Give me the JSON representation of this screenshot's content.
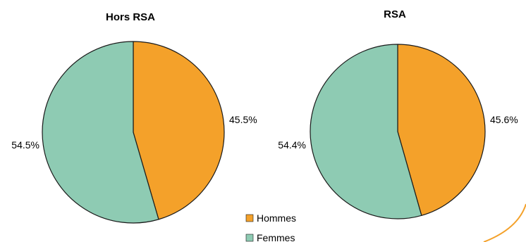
{
  "chart_data": [
    {
      "type": "pie",
      "title": "Hors RSA",
      "categories": [
        "Hommes",
        "Femmes"
      ],
      "values": [
        45.5,
        54.5
      ],
      "labels": [
        "45.5%",
        "54.5%"
      ]
    },
    {
      "type": "pie",
      "title": "RSA",
      "categories": [
        "Hommes",
        "Femmes"
      ],
      "values": [
        45.6,
        54.4
      ],
      "labels": [
        "45.6%",
        "54.4%"
      ]
    }
  ],
  "legend": {
    "placement": "bottom-center",
    "items": [
      {
        "label": "Hommes",
        "color": "#f4a12a"
      },
      {
        "label": "Femmes",
        "color": "#8ecbb3"
      }
    ]
  },
  "colors": {
    "hommes": "#f4a12a",
    "femmes": "#8ecbb3",
    "slice_border": "#1a1a1a",
    "decor_arc": "#f4a12a"
  }
}
